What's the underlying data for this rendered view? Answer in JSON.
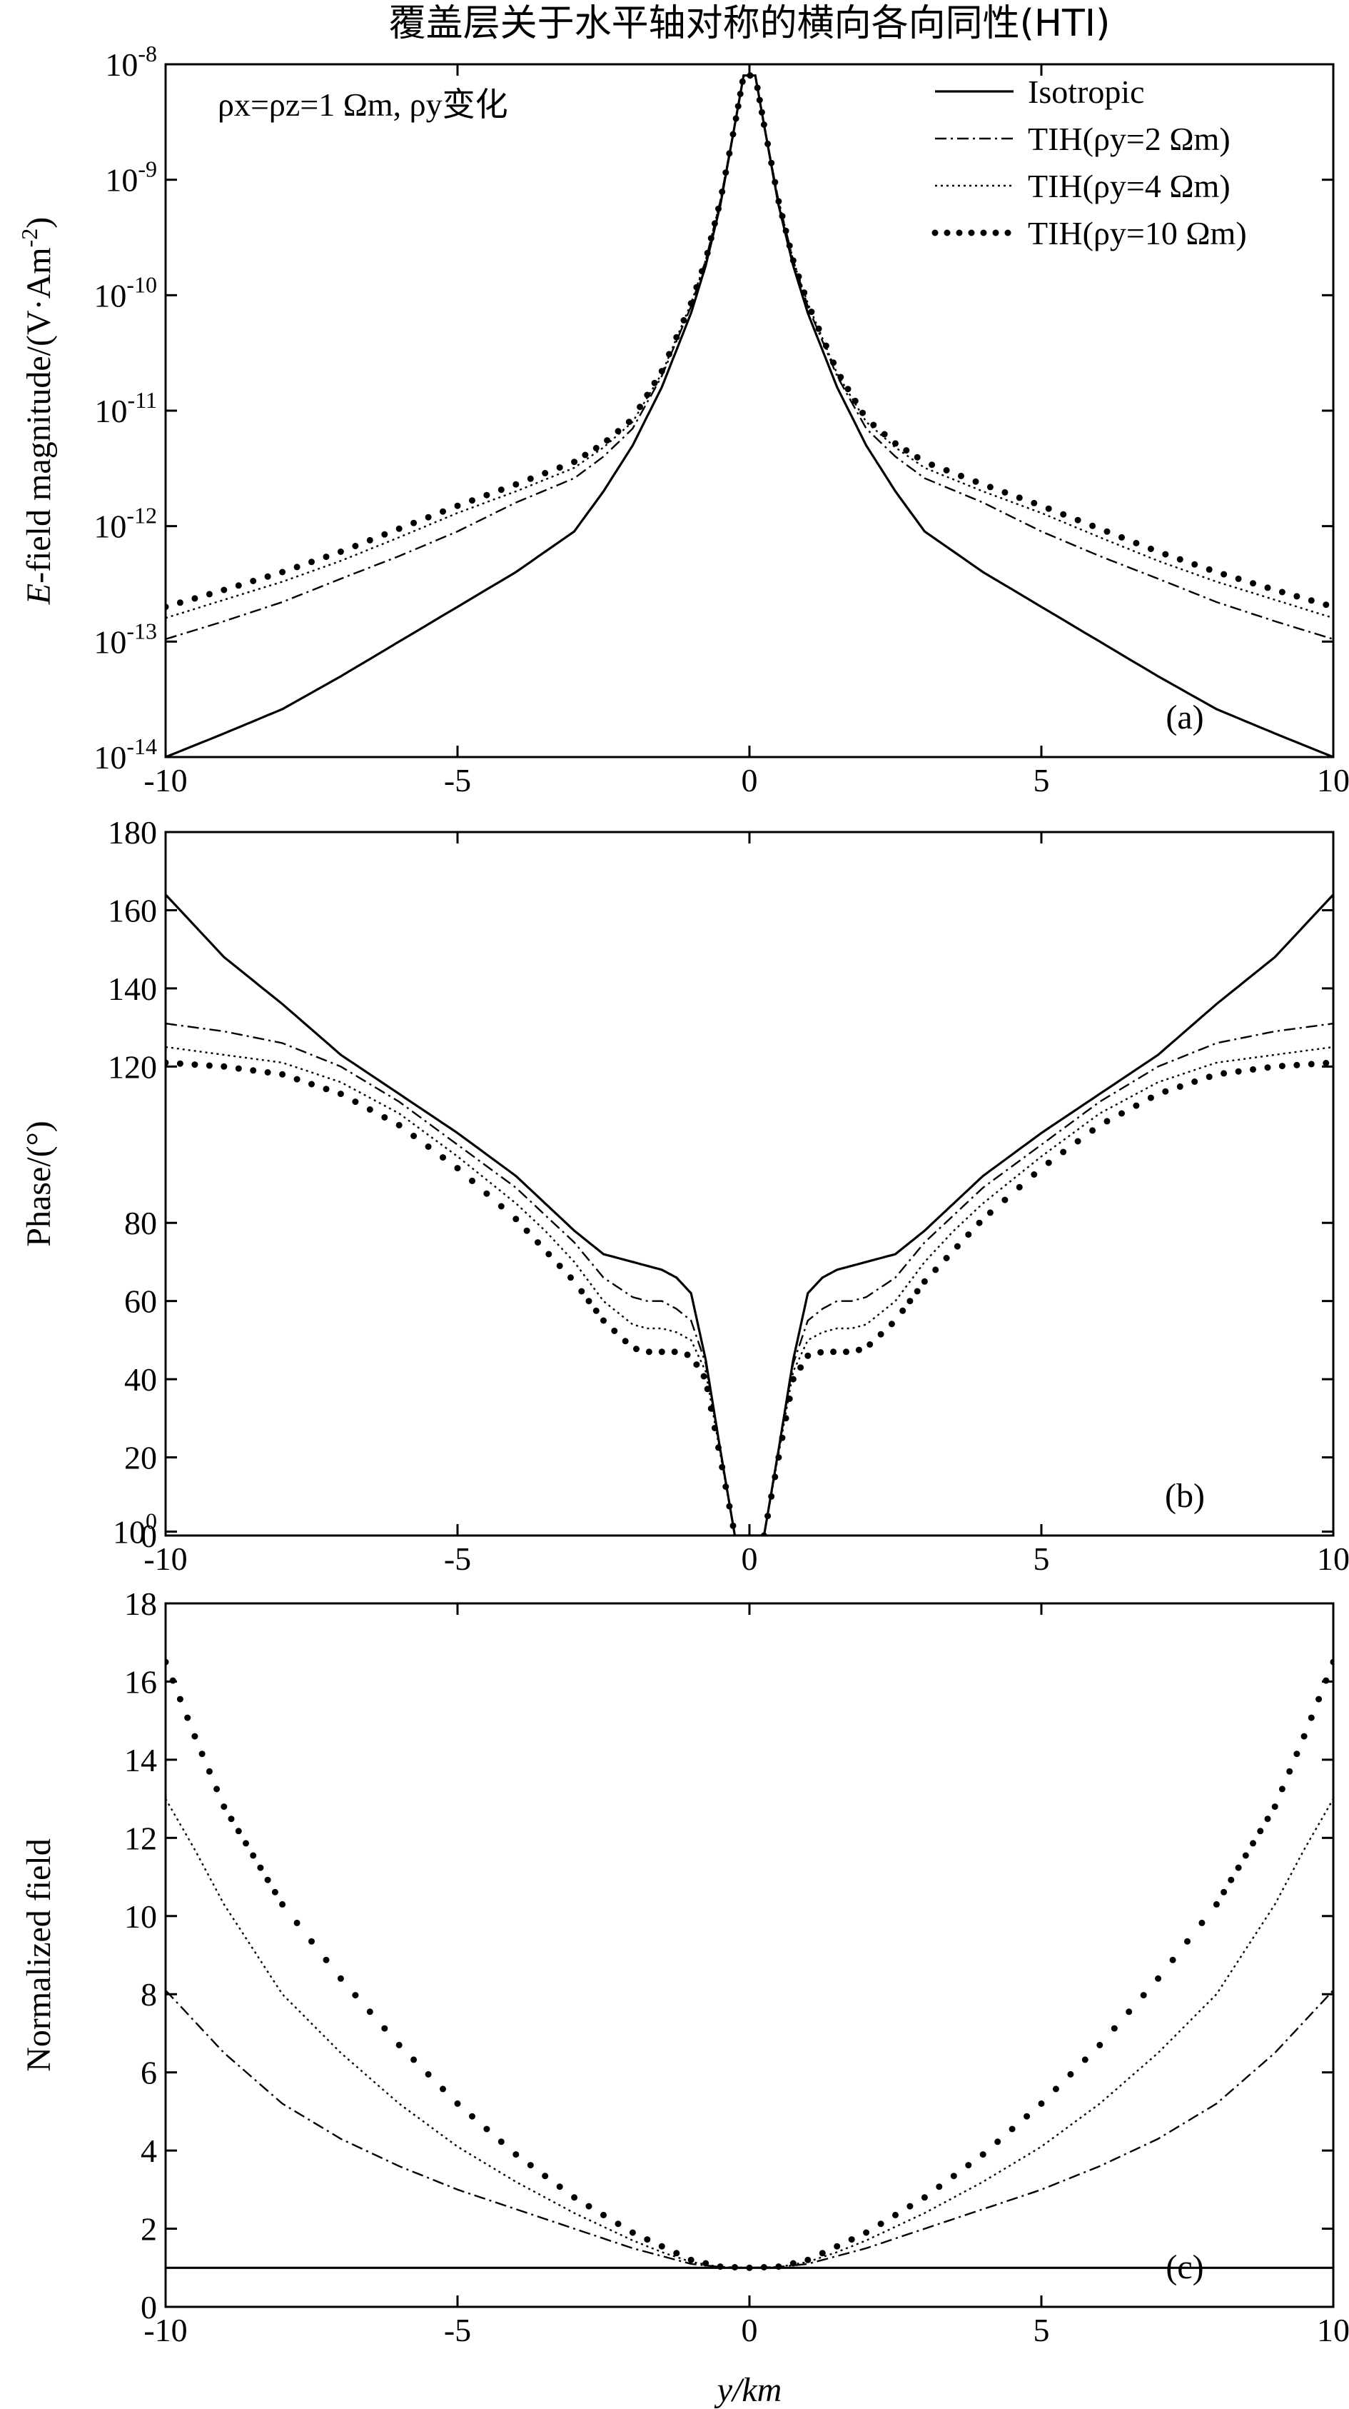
{
  "title": "覆盖层关于水平轴对称的横向各向同性(HTI)",
  "legend": {
    "placement": "top-right",
    "entries": [
      "Isotropic",
      "TIH(ρy=2 Ωm)",
      "TIH(ρy=4 Ωm)",
      "TIH(ρy=10 Ωm)"
    ]
  },
  "xlabel": "y/km",
  "annotation": "ρx=ρz=1 Ωm, ρy变化",
  "chart_data": [
    {
      "panel": "(a)",
      "type": "line",
      "y_scale": "log",
      "ylabel": "E-field magnitude/(V·Am-2)",
      "xlim": [
        -10,
        10
      ],
      "ylim": [
        1e-14,
        1e-08
      ],
      "x_ticks": [
        "-10",
        "-5",
        "0",
        "5",
        "10"
      ],
      "y_ticks": [
        "10-14",
        "10-13",
        "10-12",
        "10-11",
        "10-10",
        "10-9",
        "10-8"
      ],
      "grid": false,
      "x": [
        0,
        0.1,
        0.25,
        0.5,
        0.75,
        1,
        1.5,
        2,
        2.5,
        3,
        4,
        5,
        6,
        7,
        8,
        9,
        10
      ],
      "series": [
        {
          "name": "Isotropic",
          "style": "solid",
          "values": [
            8e-09,
            8e-09,
            3e-09,
            6e-10,
            1.8e-10,
            7e-11,
            1.6e-11,
            5e-12,
            2e-12,
            9e-13,
            4e-13,
            2e-13,
            1e-13,
            5e-14,
            2.6e-14,
            1.6e-14,
            1e-14
          ]
        },
        {
          "name": "TIH(ρy=2 Ωm)",
          "style": "dashdot",
          "values": [
            8e-09,
            8e-09,
            3e-09,
            6.5e-10,
            2e-10,
            8e-11,
            2e-11,
            7e-12,
            4e-12,
            2.6e-12,
            1.6e-12,
            9e-13,
            5.5e-13,
            3.5e-13,
            2.2e-13,
            1.5e-13,
            1.05e-13
          ]
        },
        {
          "name": "TIH(ρy=4 Ωm)",
          "style": "dotted",
          "values": [
            8e-09,
            8e-09,
            3e-09,
            6.5e-10,
            2e-10,
            8.5e-11,
            2.1e-11,
            8e-12,
            4.8e-12,
            3.2e-12,
            2e-12,
            1.3e-12,
            8e-13,
            5e-13,
            3.3e-13,
            2.3e-13,
            1.6e-13
          ]
        },
        {
          "name": "TIH(ρy=10 Ωm)",
          "style": "markers",
          "values": [
            8e-09,
            8e-09,
            3e-09,
            6.5e-10,
            2e-10,
            8.5e-11,
            2.2e-11,
            8.5e-12,
            5.2e-12,
            3.6e-12,
            2.3e-12,
            1.5e-12,
            9.5e-13,
            6e-13,
            4e-13,
            2.8e-13,
            2e-13
          ]
        }
      ]
    },
    {
      "panel": "(b)",
      "type": "line",
      "ylabel": "Phase/(°)",
      "xlim": [
        -10,
        10
      ],
      "ylim": [
        0,
        180
      ],
      "x_ticks": [
        "-10",
        "-5",
        "0",
        "5",
        "10"
      ],
      "y_ticks": [
        "0",
        "20",
        "40",
        "60",
        "80",
        "100",
        "120",
        "140",
        "160",
        "180"
      ],
      "grid": false,
      "x": [
        0.25,
        0.5,
        0.75,
        1,
        1.25,
        1.5,
        1.75,
        2,
        2.5,
        3,
        3.5,
        4,
        5,
        6,
        7,
        8,
        9,
        10
      ],
      "series": [
        {
          "name": "Isotropic",
          "style": "solid",
          "values": [
            0,
            22,
            45,
            62,
            66,
            68,
            69,
            70,
            72,
            78,
            85,
            92,
            103,
            113,
            123,
            136,
            148,
            164
          ]
        },
        {
          "name": "TIH(ρy=2 Ωm)",
          "style": "dashdot",
          "values": [
            0,
            22,
            44,
            55,
            58,
            60,
            60,
            61,
            66,
            75,
            82,
            89,
            100,
            111,
            120,
            126,
            129,
            131
          ]
        },
        {
          "name": "TIH(ρy=4 Ωm)",
          "style": "dotted",
          "values": [
            0,
            21,
            42,
            50,
            52,
            53,
            53,
            54,
            60,
            70,
            78,
            85,
            97,
            108,
            116,
            121,
            123,
            125
          ]
        },
        {
          "name": "TIH(ρy=10 Ωm)",
          "style": "markers",
          "values": [
            0,
            20,
            40,
            46,
            47,
            47,
            47,
            48,
            55,
            65,
            73,
            81,
            94,
            105,
            113,
            118,
            120,
            121
          ]
        }
      ]
    },
    {
      "panel": "(c)",
      "type": "line",
      "ylabel": "Normalized field",
      "xlim": [
        -10,
        10
      ],
      "ylim": [
        0,
        18
      ],
      "x_ticks": [
        "-10",
        "-5",
        "0",
        "5",
        "10"
      ],
      "y_ticks": [
        "0",
        "2",
        "4",
        "6",
        "8",
        "10",
        "12",
        "14",
        "16",
        "18"
      ],
      "grid": false,
      "x": [
        0,
        0.5,
        1,
        1.5,
        2,
        3,
        4,
        5,
        6,
        7,
        8,
        9,
        9.5,
        10
      ],
      "series": [
        {
          "name": "Isotropic",
          "style": "solid",
          "values": [
            1,
            1,
            1,
            1,
            1,
            1,
            1,
            1,
            1,
            1,
            1,
            1,
            1,
            1
          ]
        },
        {
          "name": "TIH(ρy=2 Ωm)",
          "style": "dashdot",
          "values": [
            1,
            1.02,
            1.1,
            1.3,
            1.5,
            2,
            2.5,
            3,
            3.6,
            4.3,
            5.2,
            6.5,
            7.3,
            8.1
          ]
        },
        {
          "name": "TIH(ρy=4 Ωm)",
          "style": "dotted",
          "values": [
            1,
            1.02,
            1.15,
            1.4,
            1.7,
            2.4,
            3.2,
            4.1,
            5.2,
            6.5,
            8,
            10.3,
            11.7,
            13
          ]
        },
        {
          "name": "TIH(ρy=10 Ωm)",
          "style": "markers",
          "values": [
            1,
            1.03,
            1.2,
            1.55,
            1.9,
            2.8,
            3.9,
            5.2,
            6.7,
            8.4,
            10.3,
            12.8,
            14.6,
            16.5
          ]
        }
      ]
    }
  ]
}
